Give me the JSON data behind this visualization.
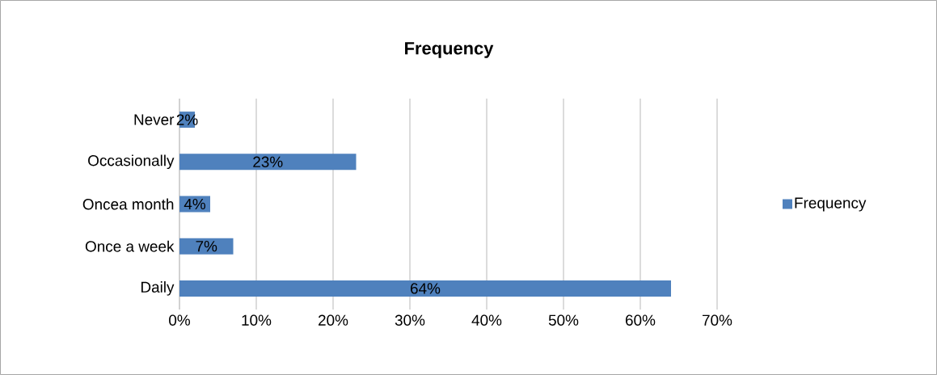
{
  "chart_data": {
    "type": "bar",
    "orientation": "horizontal",
    "title": "Frequency",
    "categories": [
      "Never",
      "Occasionally",
      "Oncea month",
      "Once a week",
      "Daily"
    ],
    "series": [
      {
        "name": "Frequency",
        "color": "#4f81bd",
        "values": [
          2,
          23,
          4,
          7,
          64
        ],
        "value_labels": [
          "2%",
          "23%",
          "4%",
          "7%",
          "64%"
        ]
      }
    ],
    "xlim": [
      0,
      70
    ],
    "xticks": [
      {
        "value": 0,
        "label": "0%"
      },
      {
        "value": 10,
        "label": "10%"
      },
      {
        "value": 20,
        "label": "20%"
      },
      {
        "value": 30,
        "label": "30%"
      },
      {
        "value": 40,
        "label": "40%"
      },
      {
        "value": 50,
        "label": "50%"
      },
      {
        "value": 60,
        "label": "60%"
      },
      {
        "value": 70,
        "label": "70%"
      }
    ],
    "grid": "x",
    "legend": "right"
  }
}
